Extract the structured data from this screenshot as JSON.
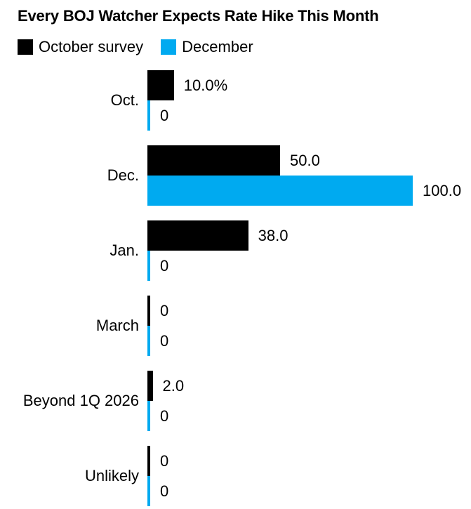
{
  "title": "Every BOJ Watcher Expects Rate Hike This Month",
  "legend": [
    {
      "label": "October survey",
      "color": "#000000"
    },
    {
      "label": "December",
      "color": "#00aaf0"
    }
  ],
  "chart_data": {
    "type": "bar",
    "orientation": "horizontal",
    "title": "Every BOJ Watcher Expects Rate Hike This Month",
    "categories": [
      "Oct.",
      "Dec.",
      "Jan.",
      "March",
      "Beyond 1Q 2026",
      "Unlikely"
    ],
    "series": [
      {
        "name": "October survey",
        "color": "#000000",
        "values": [
          10.0,
          50.0,
          38.0,
          0,
          2.0,
          0
        ],
        "labels": [
          "10.0%",
          "50.0",
          "38.0",
          "0",
          "2.0",
          "0"
        ]
      },
      {
        "name": "December",
        "color": "#00aaf0",
        "values": [
          0,
          100.0,
          0,
          0,
          0,
          0
        ],
        "labels": [
          "0",
          "100.0",
          "0",
          "0",
          "0",
          "0"
        ]
      }
    ],
    "unit": "%",
    "xlim": [
      0,
      100
    ],
    "grid": false,
    "legend_position": "top",
    "value_labels": true
  }
}
